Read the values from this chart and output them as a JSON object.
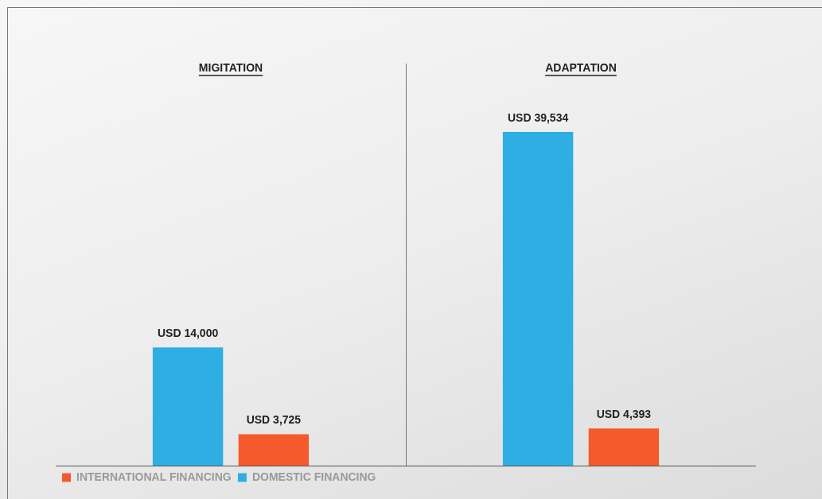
{
  "chart_data": {
    "type": "bar",
    "categories": [
      "MIGITATION",
      "ADAPTATION"
    ],
    "series": [
      {
        "name": "DOMESTIC FINANCING",
        "color": "#2eaee3",
        "values": [
          14000,
          39534
        ],
        "value_labels": [
          "USD 14,000",
          "USD 39,534"
        ]
      },
      {
        "name": "INTERNATIONAL FINANCING",
        "color": "#f55a2c",
        "values": [
          3725,
          4393
        ],
        "value_labels": [
          "USD 3,725",
          "USD 4,393"
        ]
      }
    ],
    "legend": "bottom left",
    "grid": false
  }
}
